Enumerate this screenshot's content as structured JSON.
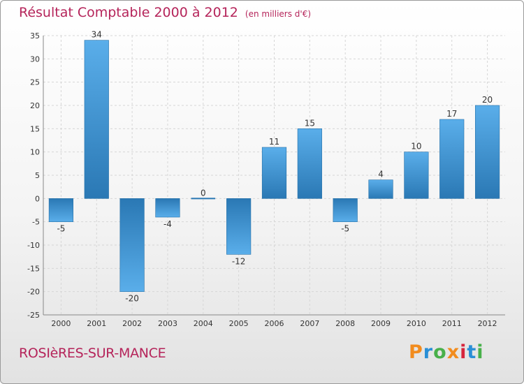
{
  "header": {
    "title": "Résultat Comptable 2000 à 2012",
    "unit_note": "(en milliers d'€)"
  },
  "footer": {
    "city": "ROSIèRES-SUR-MANCE",
    "logo": {
      "text": "Proxiti",
      "colors": [
        "#f28c1e",
        "#2a8fd6",
        "#48b04a",
        "#f28c1e",
        "#d7263d",
        "#2a8fd6",
        "#48b04a"
      ]
    }
  },
  "colors": {
    "accent": "#b5245a",
    "bar_light": "#5aaeea",
    "bar_dark": "#2a78b4",
    "grid": "#d6d6d6",
    "axis_text": "#333333"
  },
  "chart_data": {
    "type": "bar",
    "title": "Résultat Comptable 2000 à 2012",
    "subtitle": "(en milliers d'€)",
    "categories": [
      "2000",
      "2001",
      "2002",
      "2003",
      "2004",
      "2005",
      "2006",
      "2007",
      "2008",
      "2009",
      "2010",
      "2011",
      "2012"
    ],
    "values": [
      -5,
      34,
      -20,
      -4,
      0,
      -12,
      11,
      15,
      -5,
      4,
      10,
      17,
      20
    ],
    "ylim": [
      -25,
      35
    ],
    "yticks": [
      -25,
      -20,
      -15,
      -10,
      -5,
      0,
      5,
      10,
      15,
      20,
      25,
      30,
      35
    ],
    "grid": true,
    "data_labels": true
  }
}
